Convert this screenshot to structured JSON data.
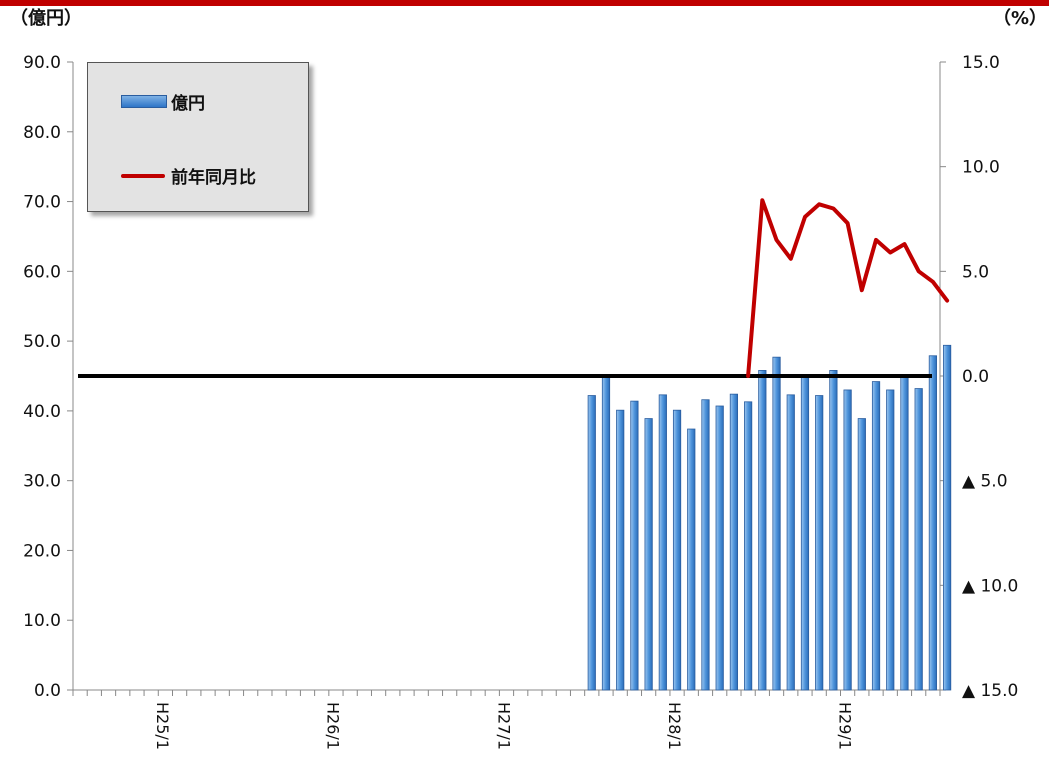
{
  "chart_data": {
    "type": "bar",
    "left_unit": "（億円）",
    "right_unit": "（%）",
    "y_left": {
      "min": 0,
      "max": 90,
      "step": 10,
      "ticks": [
        "0.0",
        "10.0",
        "20.0",
        "30.0",
        "40.0",
        "50.0",
        "60.0",
        "70.0",
        "80.0",
        "90.0"
      ]
    },
    "y_right": {
      "min": -15,
      "max": 15,
      "step": 5,
      "ticks": [
        "▲ 15.0",
        "▲ 10.0",
        "▲ 5.0",
        "0.0",
        "5.0",
        "10.0",
        "15.0"
      ]
    },
    "x_category_count": 61,
    "x_labels": [
      {
        "index": 5,
        "label": "H25/1"
      },
      {
        "index": 17,
        "label": "H26/1"
      },
      {
        "index": 29,
        "label": "H27/1"
      },
      {
        "index": 41,
        "label": "H28/1"
      },
      {
        "index": 53,
        "label": "H29/1"
      }
    ],
    "series": [
      {
        "name": "億円",
        "type": "bar",
        "axis": "left",
        "color": "#3d85d3",
        "start_index": 36,
        "values": [
          42.2,
          44.8,
          40.1,
          41.4,
          38.9,
          42.3,
          40.1,
          37.4,
          41.6,
          40.7,
          42.4,
          41.3,
          45.8,
          47.7,
          42.3,
          44.8,
          42.2,
          45.8,
          43.0,
          38.9,
          44.2,
          43.0,
          45.0,
          43.2,
          47.9,
          49.4
        ]
      },
      {
        "name": "前年同月比",
        "type": "line",
        "axis": "right",
        "color": "#c00000",
        "start_index": 47,
        "values": [
          0.0,
          8.4,
          6.5,
          5.6,
          7.6,
          8.2,
          8.0,
          7.3,
          4.1,
          6.5,
          5.9,
          6.3,
          5.0,
          4.5,
          3.6
        ]
      }
    ],
    "zero_line": {
      "axis": "right",
      "value": 0,
      "color": "#000000"
    },
    "legend_position": "top-left",
    "grid": false
  }
}
